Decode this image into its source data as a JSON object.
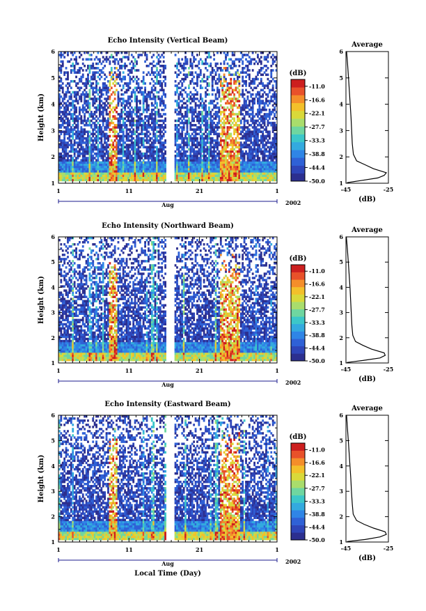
{
  "chart_data": [
    {
      "type": "heatmap",
      "title": "Echo Intensity (Vertical Beam)",
      "ylabel": "Height (km)",
      "xlabel": "",
      "x_ticks": [
        "1",
        "11",
        "21",
        "1"
      ],
      "y_ticks": [
        "1",
        "2",
        "3",
        "4",
        "5",
        "6"
      ],
      "xlim": [
        1,
        32
      ],
      "ylim": [
        1,
        6
      ],
      "month_label": "Aug",
      "year_label": "2002",
      "colorbar": {
        "unit": "(dB)",
        "ticks": [
          "-11.0",
          "-16.6",
          "-22.1",
          "-27.7",
          "-33.3",
          "-38.8",
          "-44.4",
          "-50.0"
        ],
        "range": [
          -50.0,
          -8.2
        ]
      },
      "data_gaps_days": [
        [
          16.2,
          17.4
        ]
      ],
      "strong_echo_days": [
        [
          8.2,
          9.3
        ],
        [
          24.0,
          26.8
        ]
      ],
      "profile": {
        "title": "Average",
        "xlabel": "(dB)",
        "x_ticks": [
          "-45",
          "-25"
        ],
        "xlim": [
          -45,
          -25
        ],
        "points": [
          {
            "h": 1.02,
            "db": -44.5
          },
          {
            "h": 1.1,
            "db": -38
          },
          {
            "h": 1.2,
            "db": -30
          },
          {
            "h": 1.3,
            "db": -27
          },
          {
            "h": 1.4,
            "db": -26
          },
          {
            "h": 1.55,
            "db": -32
          },
          {
            "h": 1.7,
            "db": -36
          },
          {
            "h": 1.85,
            "db": -40
          },
          {
            "h": 2.1,
            "db": -41.5
          },
          {
            "h": 2.5,
            "db": -42
          },
          {
            "h": 3.0,
            "db": -42.3
          },
          {
            "h": 3.5,
            "db": -42.6
          },
          {
            "h": 4.0,
            "db": -43
          },
          {
            "h": 4.5,
            "db": -43.4
          },
          {
            "h": 5.0,
            "db": -43.8
          },
          {
            "h": 5.5,
            "db": -44.2
          },
          {
            "h": 6.0,
            "db": -44.7
          }
        ]
      }
    },
    {
      "type": "heatmap",
      "title": "Echo Intensity (Northward Beam)",
      "ylabel": "Height (km)",
      "xlabel": "",
      "x_ticks": [
        "1",
        "11",
        "21",
        "1"
      ],
      "y_ticks": [
        "1",
        "2",
        "3",
        "4",
        "5",
        "6"
      ],
      "xlim": [
        1,
        32
      ],
      "ylim": [
        1,
        6
      ],
      "month_label": "Aug",
      "year_label": "2002",
      "colorbar": {
        "unit": "(dB)",
        "ticks": [
          "-11.0",
          "-16.6",
          "-22.1",
          "-27.7",
          "-33.3",
          "-38.8",
          "-44.4",
          "-50.0"
        ],
        "range": [
          -50.0,
          -8.2
        ]
      },
      "data_gaps_days": [
        [
          16.2,
          17.4
        ]
      ],
      "strong_echo_days": [
        [
          8.2,
          9.3
        ],
        [
          24.0,
          26.8
        ]
      ],
      "profile": {
        "title": "Average",
        "xlabel": "(dB)",
        "x_ticks": [
          "-45",
          "-25"
        ],
        "xlim": [
          -45,
          -25
        ],
        "points": [
          {
            "h": 1.02,
            "db": -44.6
          },
          {
            "h": 1.1,
            "db": -37
          },
          {
            "h": 1.2,
            "db": -29
          },
          {
            "h": 1.3,
            "db": -26.5
          },
          {
            "h": 1.4,
            "db": -27
          },
          {
            "h": 1.55,
            "db": -33
          },
          {
            "h": 1.7,
            "db": -37
          },
          {
            "h": 1.85,
            "db": -40.5
          },
          {
            "h": 2.1,
            "db": -41.8
          },
          {
            "h": 2.5,
            "db": -42.2
          },
          {
            "h": 3.0,
            "db": -42.5
          },
          {
            "h": 3.5,
            "db": -42.8
          },
          {
            "h": 4.0,
            "db": -43.1
          },
          {
            "h": 4.5,
            "db": -43.5
          },
          {
            "h": 5.0,
            "db": -43.9
          },
          {
            "h": 5.5,
            "db": -44.3
          },
          {
            "h": 6.0,
            "db": -44.8
          }
        ]
      }
    },
    {
      "type": "heatmap",
      "title": "Echo Intensity (Eastward Beam)",
      "ylabel": "Height (km)",
      "xlabel": "Local Time (Day)",
      "x_ticks": [
        "1",
        "11",
        "21",
        "1"
      ],
      "y_ticks": [
        "1",
        "2",
        "3",
        "4",
        "5",
        "6"
      ],
      "xlim": [
        1,
        32
      ],
      "ylim": [
        1,
        6
      ],
      "month_label": "Aug",
      "year_label": "2002",
      "colorbar": {
        "unit": "(dB)",
        "ticks": [
          "-11.0",
          "-16.6",
          "-22.1",
          "-27.7",
          "-33.3",
          "-38.8",
          "-44.4",
          "-50.0"
        ],
        "range": [
          -50.0,
          -8.2
        ]
      },
      "data_gaps_days": [
        [
          16.2,
          17.4
        ]
      ],
      "strong_echo_days": [
        [
          8.2,
          9.3
        ],
        [
          24.0,
          26.8
        ]
      ],
      "profile": {
        "title": "Average",
        "xlabel": "(dB)",
        "x_ticks": [
          "-45",
          "-25"
        ],
        "xlim": [
          -45,
          -25
        ],
        "points": [
          {
            "h": 1.02,
            "db": -44.5
          },
          {
            "h": 1.1,
            "db": -36
          },
          {
            "h": 1.2,
            "db": -29
          },
          {
            "h": 1.3,
            "db": -26
          },
          {
            "h": 1.4,
            "db": -26.5
          },
          {
            "h": 1.55,
            "db": -32
          },
          {
            "h": 1.7,
            "db": -36.5
          },
          {
            "h": 1.85,
            "db": -40
          },
          {
            "h": 2.1,
            "db": -41.6
          },
          {
            "h": 2.5,
            "db": -42
          },
          {
            "h": 3.0,
            "db": -42.4
          },
          {
            "h": 3.5,
            "db": -42.7
          },
          {
            "h": 4.0,
            "db": -43.1
          },
          {
            "h": 4.5,
            "db": -43.5
          },
          {
            "h": 5.0,
            "db": -43.9
          },
          {
            "h": 5.5,
            "db": -44.3
          },
          {
            "h": 6.0,
            "db": -44.7
          }
        ]
      }
    }
  ],
  "colors": {
    "scale": [
      "#2c2f8f",
      "#2e45b8",
      "#2f61d6",
      "#2f85e6",
      "#33aadf",
      "#3cc7c9",
      "#6fd6a0",
      "#a9dd6c",
      "#d9d93a",
      "#f3c02a",
      "#f48e2a",
      "#e8512a",
      "#cc1f1f"
    ],
    "axis": "#000000",
    "month_bar": "#1a1a8c"
  }
}
